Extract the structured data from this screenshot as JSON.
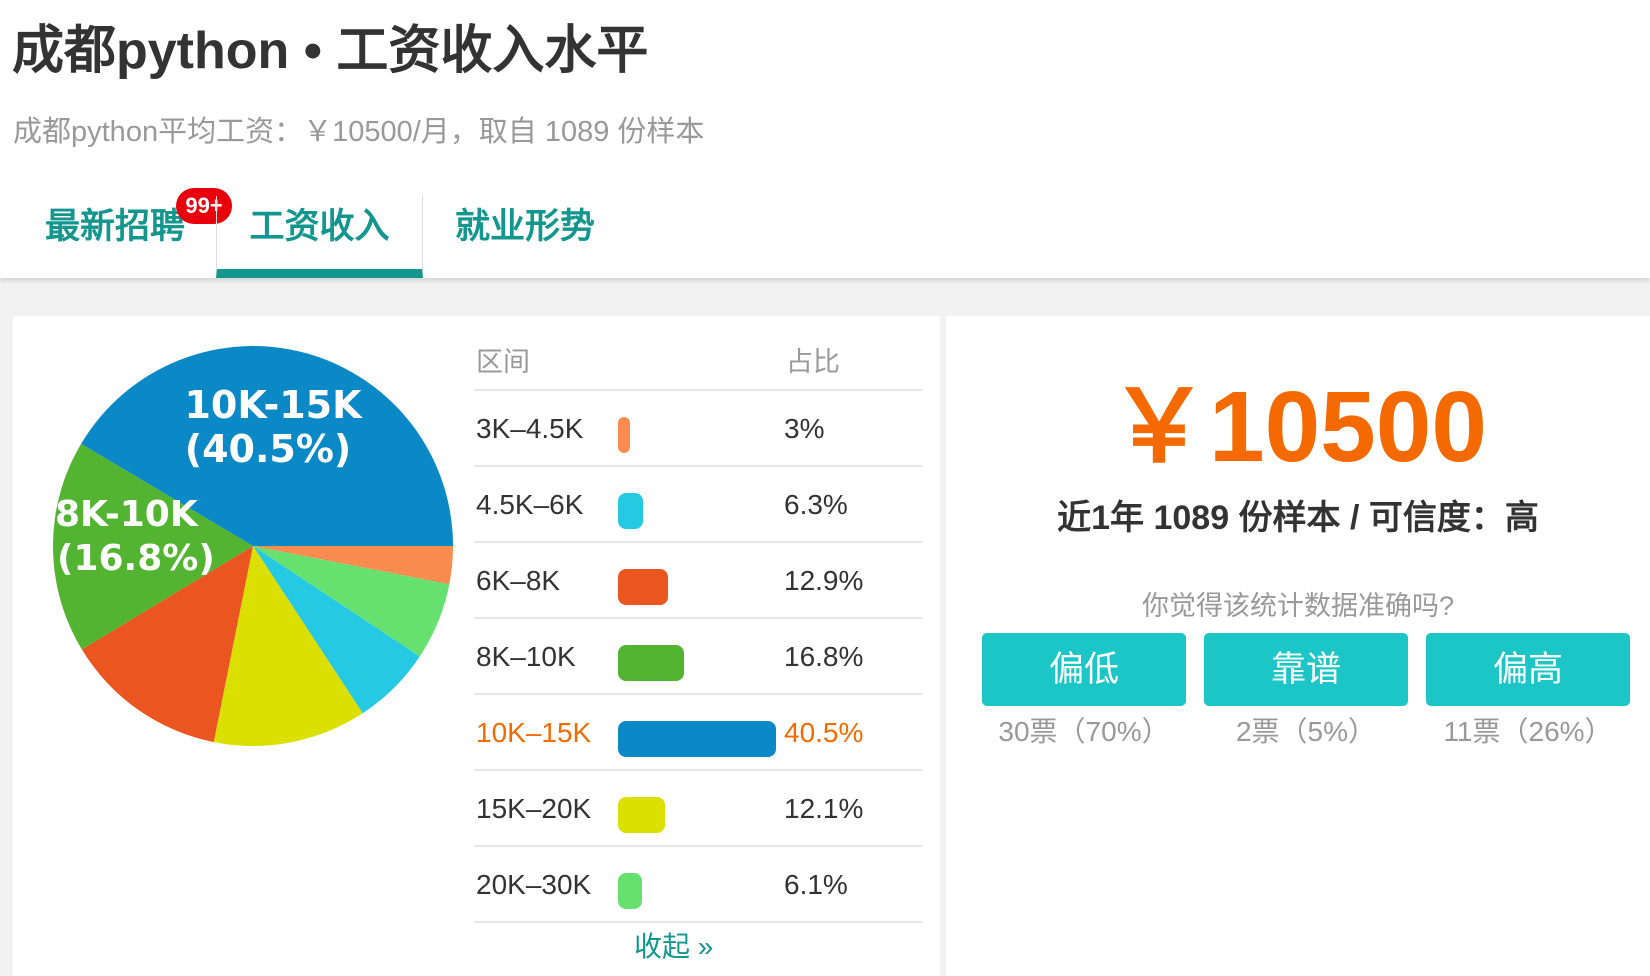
{
  "header": {
    "title": "成都python • 工资收入水平",
    "subtitle": "成都python平均工资：￥10500/月，取自 1089 份样本"
  },
  "tabs": [
    {
      "label": "最新招聘",
      "badge": "99+"
    },
    {
      "label": "工资收入",
      "active": true
    },
    {
      "label": "就业形势"
    }
  ],
  "table": {
    "col_range": "区间",
    "col_share": "占比",
    "collapse": "收起 »"
  },
  "chart_data": {
    "type": "pie",
    "slices": [
      {
        "label": "3K–4.5K",
        "value": 3,
        "color": "#fb8c4f"
      },
      {
        "label": "4.5K–6K",
        "value": 6.3,
        "color": "#25c9e3"
      },
      {
        "label": "6K–8K",
        "value": 12.9,
        "color": "#eb5620"
      },
      {
        "label": "8K–10K",
        "value": 16.8,
        "color": "#53b431"
      },
      {
        "label": "10K–15K",
        "value": 40.5,
        "color": "#0a89c6",
        "highlight": true
      },
      {
        "label": "15K–20K",
        "value": 12.1,
        "color": "#dce000"
      },
      {
        "label": "20K–30K",
        "value": 6.1,
        "color": "#66e06e"
      }
    ],
    "pie_labels": [
      {
        "line1": "10K-15K",
        "line2": "(40.5%)"
      },
      {
        "line1": "8K-10K",
        "line2": "(16.8%)"
      }
    ],
    "pie_order": [
      "3K–4.5K",
      "20K–30K",
      "4.5K–6K",
      "15K–20K",
      "6K–8K",
      "8K–10K",
      "10K–15K"
    ]
  },
  "summary": {
    "average": "￥10500",
    "sample": "近1年 1089 份样本 / 可信度：高",
    "question": "你觉得该统计数据准确吗?"
  },
  "vote": [
    {
      "label": "偏低",
      "count": "30票（70%）"
    },
    {
      "label": "靠谱",
      "count": "2票（5%）"
    },
    {
      "label": "偏高",
      "count": "11票（26%）"
    }
  ],
  "colors": {
    "accent": "#13968d",
    "orange": "#f46a00",
    "vote_button": "#1cc6c6",
    "badge": "#e8000b"
  }
}
